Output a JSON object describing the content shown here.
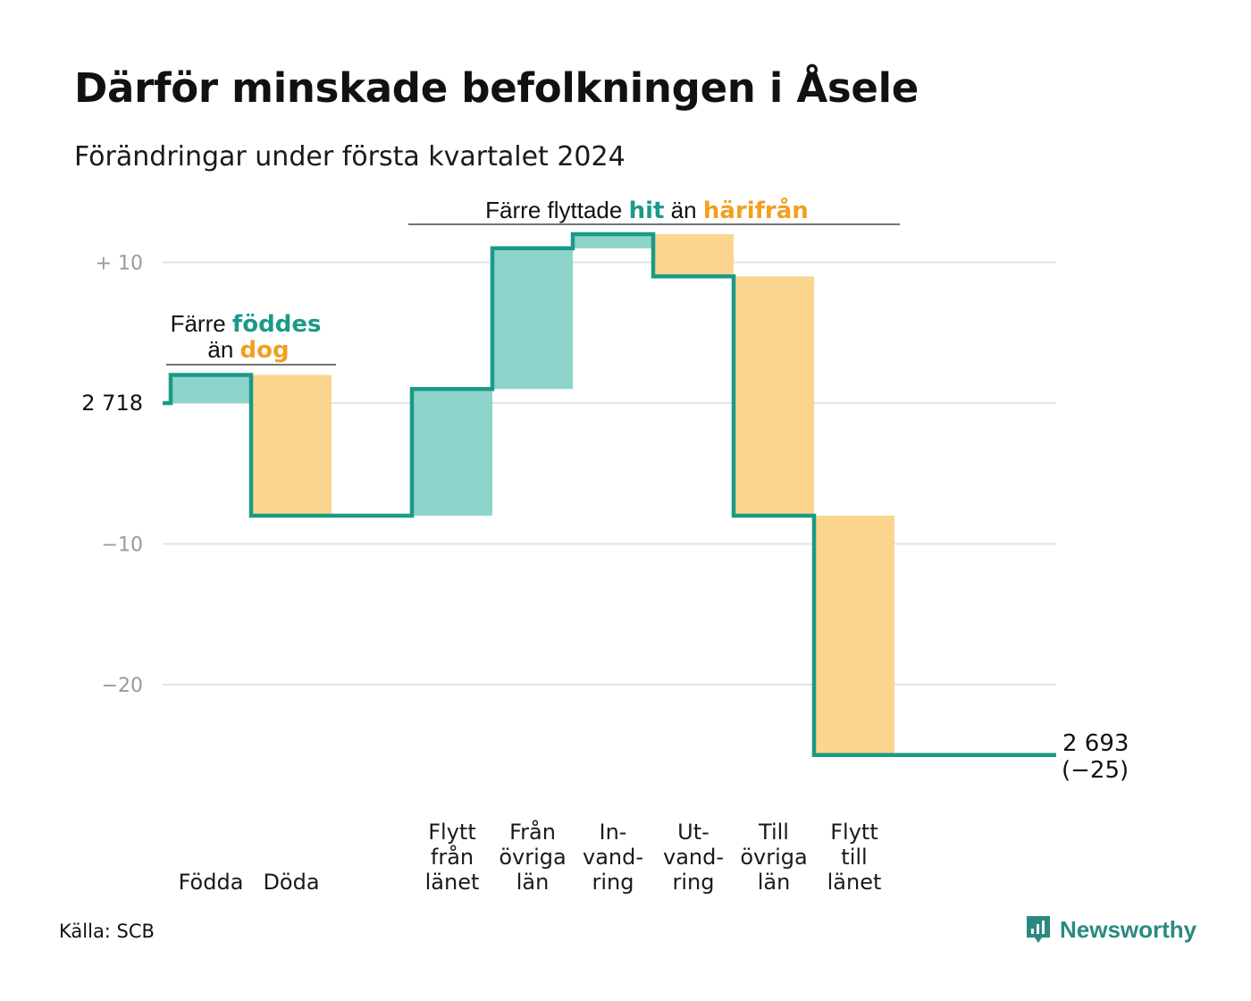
{
  "title": "Därför minskade befolkningen i Åsele",
  "subtitle": "Förändringar under första kvartalet 2024",
  "source": "Källa: SCB",
  "brand": "Newsworthy",
  "colors": {
    "line": "#1a9a87",
    "increase": "#8dd5cb",
    "decrease": "#fbd58e",
    "orange_text": "#f0a020",
    "grid": "#e3e3e3"
  },
  "annotations": {
    "births_deaths": {
      "part1": "Färre",
      "hl1": "föddes",
      "part2": "än",
      "hl2": "dog"
    },
    "migration": {
      "part1": "Färre flyttade",
      "hl1": "hit",
      "part2": "än",
      "hl2": "härifrån"
    }
  },
  "chart_data": {
    "type": "waterfall",
    "start_label": "2 718",
    "end_label_value": "2 693",
    "end_label_change": "(−25)",
    "y_ticks": [
      {
        "value": 10,
        "label": "+  10"
      },
      {
        "value": 0,
        "label": "2  718"
      },
      {
        "value": -10,
        "label": "−10"
      },
      {
        "value": -20,
        "label": "−20"
      }
    ],
    "ylim": [
      -25,
      12
    ],
    "steps": [
      {
        "label": [
          "Födda"
        ],
        "change": 2
      },
      {
        "label": [
          "Döda"
        ],
        "change": -10
      },
      {
        "label": [],
        "change": 0
      },
      {
        "label": [
          "Flytt",
          "från",
          "länet"
        ],
        "change": 9
      },
      {
        "label": [
          "Från",
          "övriga",
          "län"
        ],
        "change": 10
      },
      {
        "label": [
          "In-",
          "vand-",
          "ring"
        ],
        "change": 1
      },
      {
        "label": [
          "Ut-",
          "vand-",
          "ring"
        ],
        "change": -3
      },
      {
        "label": [
          "Till",
          "övriga",
          "län"
        ],
        "change": -17
      },
      {
        "label": [
          "Flytt",
          "till",
          "länet"
        ],
        "change": -17
      }
    ],
    "total_change": -25
  }
}
